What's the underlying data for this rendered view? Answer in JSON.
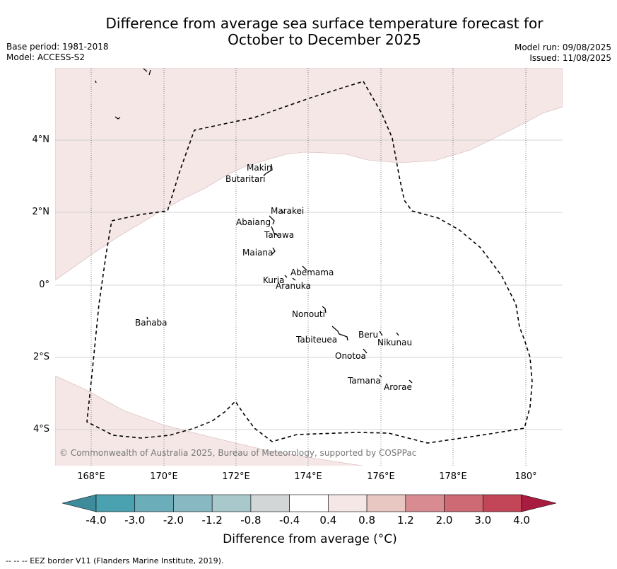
{
  "title_line1": "Difference from average sea surface temperature forecast for",
  "title_line2": "October to December 2025",
  "base_period": "Base period: 1981-2018",
  "model": "Model: ACCESS-S2",
  "model_run": "Model run: 09/08/2025",
  "issued": "Issued: 11/08/2025",
  "latitude_labels": [
    "4°N",
    "2°N",
    "0°",
    "2°S",
    "4°S"
  ],
  "longitude_labels": [
    "168°E",
    "170°E",
    "172°E",
    "174°E",
    "176°E",
    "178°E",
    "180°"
  ],
  "place_names": [
    "Makin",
    "Butaritari",
    "Marakei",
    "Abaiang",
    "Tarawa",
    "Maiana",
    "Abemama",
    "Kuria",
    "Aranuka",
    "Nonouti",
    "Tabiteuea",
    "Beru",
    "Nikunau",
    "Onotoa",
    "Tamana",
    "Arorae",
    "Banaba"
  ],
  "copyright": "© Commonwealth of Australia 2025, Bureau of Meteorology, supported by COSPPac",
  "colorbar": {
    "ticks": [
      "-4.0",
      "-3.0",
      "-2.0",
      "-1.2",
      "-0.8",
      "-0.4",
      "0.4",
      "0.8",
      "1.2",
      "2.0",
      "3.0",
      "4.0"
    ],
    "colors": [
      "#3d8b9b",
      "#4aa2b1",
      "#6badb9",
      "#88b8c1",
      "#a8c8cc",
      "#d3d6d6",
      "#ffffff",
      "#f4e7e6",
      "#e8c6c2",
      "#d88c92",
      "#cd6a74",
      "#c24658",
      "#a81d3f"
    ],
    "label": "Difference from average (°C)"
  },
  "footnote": "--  --  -- EEZ border V11 (Flanders Marine Institute, 2019)."
}
